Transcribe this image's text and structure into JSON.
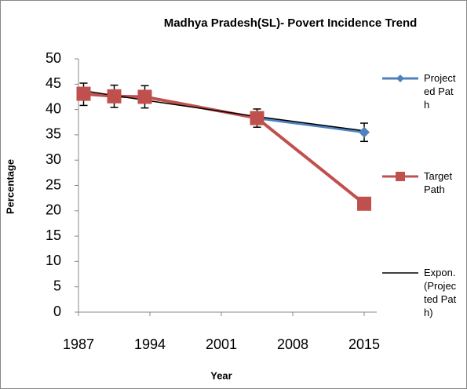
{
  "chart_data": {
    "type": "line",
    "title": "Madhya Pradesh(SL)- Povert Incidence Trend",
    "x_label": "Year",
    "y_label": "Percentage",
    "x": [
      1987.5,
      1990.5,
      1993.5,
      2004.5,
      2015
    ],
    "series": [
      {
        "name": "Projected Path",
        "color": "#4f81bd",
        "values": [
          43.0,
          42.6,
          42.5,
          38.3,
          35.5
        ],
        "errors": [
          2.2,
          2.2,
          2.2,
          1.8,
          1.8
        ],
        "marker": "diamond"
      },
      {
        "name": "Target Path",
        "color": "#c0504d",
        "values": [
          43.1,
          42.6,
          42.5,
          38.3,
          21.4
        ],
        "marker": "square"
      },
      {
        "name": "Expon. (Projected Path)",
        "color": "#000000",
        "values": [
          43.7,
          42.76,
          41.84,
          38.6,
          35.8
        ],
        "marker": "none"
      }
    ],
    "xlim": [
      1987,
      2015
    ],
    "xticks": [
      1987,
      1994,
      2001,
      2008,
      2015
    ],
    "ylim": [
      0,
      50
    ],
    "yticks": [
      0,
      5,
      10,
      15,
      20,
      25,
      30,
      35,
      40,
      45,
      50
    ],
    "grid": false,
    "legend": "right"
  }
}
